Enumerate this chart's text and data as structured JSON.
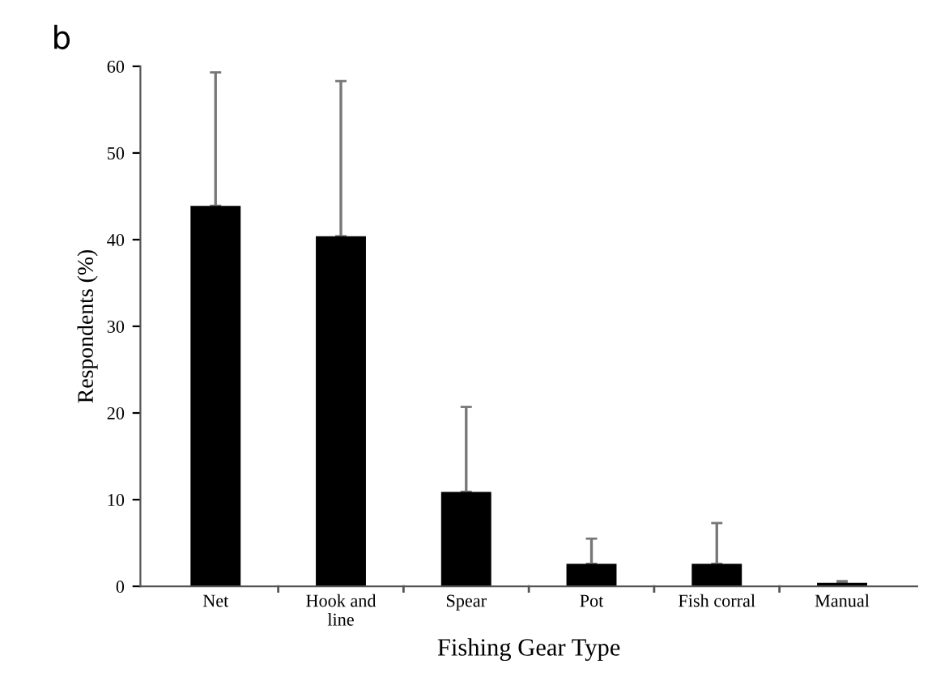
{
  "chart_data": {
    "type": "bar",
    "categories": [
      "Net",
      "Hook and\nline",
      "Spear",
      "Pot",
      "Fish corral",
      "Manual"
    ],
    "values": [
      43.9,
      40.4,
      10.9,
      2.6,
      2.6,
      0.4
    ],
    "errors": [
      [
        43.9,
        59.3
      ],
      [
        40.4,
        58.3
      ],
      [
        10.9,
        20.7
      ],
      [
        2.6,
        5.5
      ],
      [
        2.6,
        7.3
      ],
      [
        0.4,
        0.6
      ]
    ],
    "color": "#000000",
    "xlabel": "Fishing Gear Type",
    "ylabel": "Respondents (%)",
    "ylim": [
      0,
      60
    ],
    "yticks": [
      0,
      10,
      20,
      30,
      40,
      50,
      60
    ],
    "annotations": [
      "b"
    ],
    "grid": false,
    "legend": false
  }
}
